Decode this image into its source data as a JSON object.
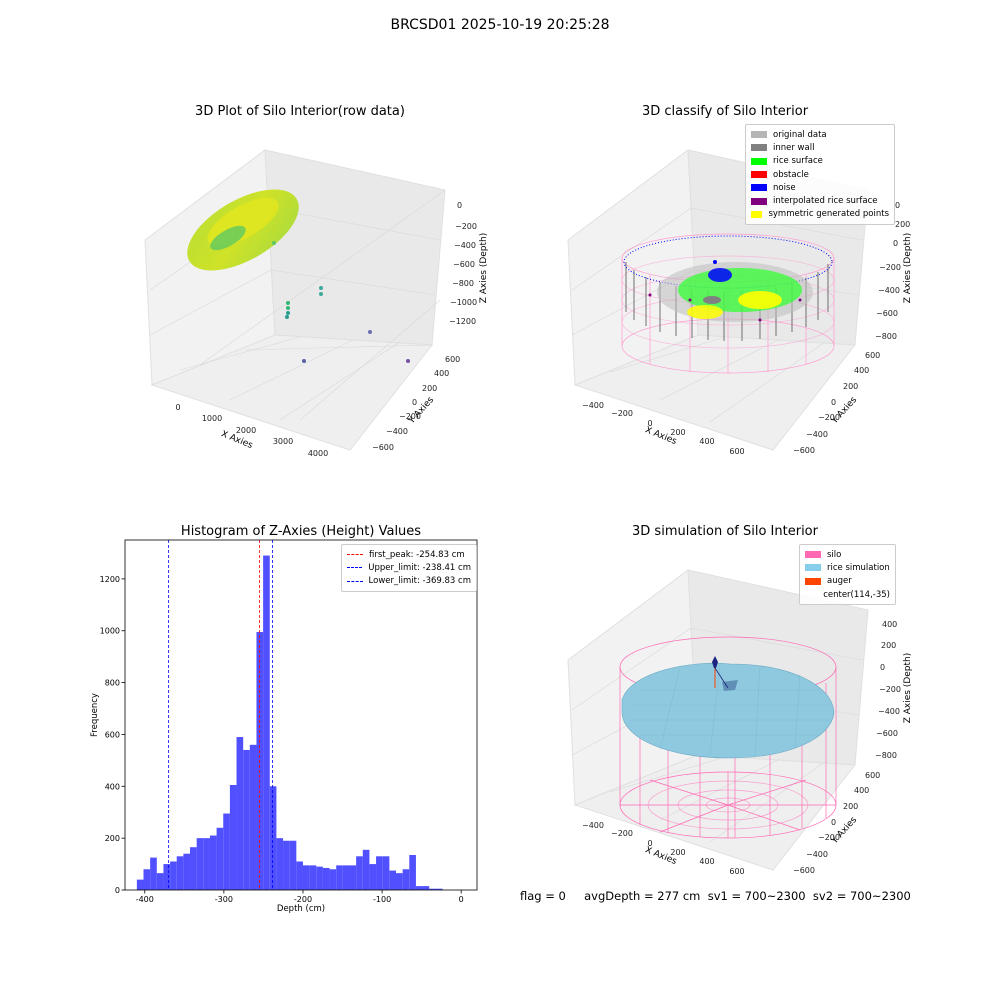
{
  "suptitle": "BRCSD01 2025-10-19 20:25:28",
  "footer": "flag = 0     avgDepth = 277 cm  sv1 = 700~2300  sv2 = 700~2300",
  "chart_data": [
    {
      "type": "scatter3d",
      "title": "3D Plot of Silo Interior(row data)",
      "xlabel": "X Axies",
      "ylabel": "Y Axies",
      "zlabel": "Z Axies (Depth)",
      "x_ticks": [
        "0",
        "1000",
        "2000",
        "3000",
        "4000"
      ],
      "y_ticks": [
        "−600",
        "−400",
        "−200",
        "0",
        "200",
        "400",
        "600"
      ],
      "z_ticks": [
        "0",
        "−200",
        "−400",
        "−600",
        "−800",
        "−1000",
        "−1200"
      ],
      "colormap": "viridis"
    },
    {
      "type": "scatter3d",
      "title": "3D classify of Silo Interior",
      "xlabel": "X Axies",
      "ylabel": "Y Axies",
      "zlabel": "Z Axies (Depth)",
      "x_ticks": [
        "−400",
        "−200",
        "0",
        "200",
        "400",
        "600"
      ],
      "y_ticks": [
        "−600",
        "−400",
        "−200",
        "0",
        "200",
        "400",
        "600"
      ],
      "z_ticks": [
        "200",
        "0",
        "−200",
        "−400",
        "−600",
        "−800"
      ],
      "z_top_partial": "0",
      "legend": [
        {
          "label": "original data",
          "color": "#b5b5b5"
        },
        {
          "label": "inner wall",
          "color": "#808080"
        },
        {
          "label": "rice surface",
          "color": "#00ff00"
        },
        {
          "label": "obstacle",
          "color": "#ff0000"
        },
        {
          "label": "noise",
          "color": "#0000ff"
        },
        {
          "label": "interpolated rice surface",
          "color": "#800080"
        },
        {
          "label": "symmetric generated points",
          "color": "#ffff00"
        }
      ],
      "legend_position": "upper right"
    },
    {
      "type": "histogram",
      "title": "Histogram of Z-Axies (Height) Values",
      "xlabel": "Depth (cm)",
      "ylabel": "Frequency",
      "xlim": [
        -425,
        20
      ],
      "ylim": [
        0,
        1350
      ],
      "x_ticks": [
        -400,
        -300,
        -200,
        -100,
        0
      ],
      "y_ticks": [
        0,
        200,
        400,
        600,
        800,
        1000,
        1200
      ],
      "bar_color": "#5050ff",
      "bin_width": 8.4,
      "bin_start": -410,
      "counts": [
        40,
        80,
        125,
        65,
        100,
        110,
        130,
        140,
        165,
        200,
        200,
        210,
        240,
        295,
        405,
        590,
        540,
        560,
        995,
        1290,
        400,
        200,
        190,
        190,
        110,
        95,
        95,
        90,
        85,
        80,
        95,
        95,
        95,
        130,
        155,
        100,
        130,
        130,
        75,
        65,
        80,
        135,
        15,
        15,
        5,
        5
      ],
      "vlines": [
        {
          "label": "first_peak: -254.83 cm",
          "x": -254.83,
          "color": "#ff0000"
        },
        {
          "label": "Upper_limit: -238.41 cm",
          "x": -238.41,
          "color": "#0000ff"
        },
        {
          "label": "Lower_limit: -369.83 cm",
          "x": -369.83,
          "color": "#0000ff"
        }
      ],
      "legend_position": "upper right"
    },
    {
      "type": "surface3d",
      "title": "3D simulation of Silo Interior",
      "xlabel": "X Axies",
      "ylabel": "Y Axies",
      "zlabel": "Z Axies (Depth)",
      "x_ticks": [
        "−400",
        "−200",
        "0",
        "200",
        "400",
        "600"
      ],
      "y_ticks": [
        "−600",
        "−400",
        "−200",
        "0",
        "200",
        "400",
        "600"
      ],
      "z_ticks": [
        "400",
        "200",
        "0",
        "−200",
        "−400",
        "−600",
        "−800"
      ],
      "legend": [
        {
          "label": "silo",
          "color": "#ff69b4"
        },
        {
          "label": "rice simulation",
          "color": "#87ceeb"
        },
        {
          "label": "auger",
          "color": "#ff4500"
        },
        {
          "label": "center(114,-35)",
          "color": ""
        }
      ],
      "legend_position": "upper right"
    }
  ]
}
